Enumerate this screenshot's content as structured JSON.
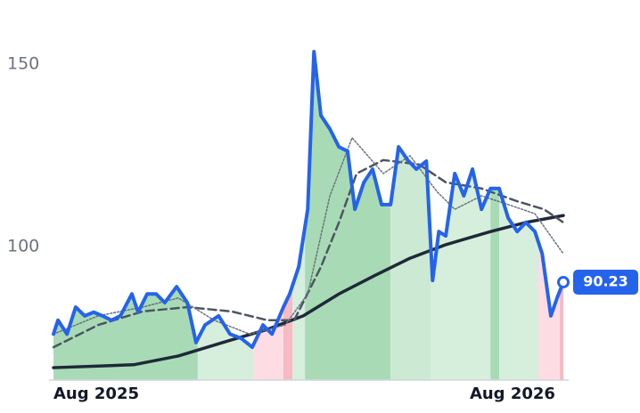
{
  "chart_data": {
    "type": "line",
    "xlim": [
      0,
      14.7
    ],
    "ylim": [
      63.4,
      160
    ],
    "xticks": [
      {
        "value": 0,
        "label": "Aug 2025"
      },
      {
        "value": 12,
        "label": "Aug 2026"
      }
    ],
    "yticks": [
      100,
      150
    ],
    "grid": false,
    "x": [
      0,
      0.13,
      0.39,
      0.64,
      0.9,
      1.16,
      1.41,
      1.67,
      1.93,
      2.26,
      2.44,
      2.7,
      2.96,
      3.21,
      3.55,
      3.86,
      4.11,
      4.37,
      4.76,
      5.09,
      5.4,
      5.73,
      6.04,
      6.3,
      6.63,
      6.81,
      7.07,
      7.33,
      7.51,
      7.71,
      7.97,
      8.23,
      8.48,
      8.69,
      8.95,
      9.2,
      9.46,
      9.72,
      9.95,
      10.21,
      10.46,
      10.75,
      10.93,
      11.11,
      11.31,
      11.57,
      11.83,
      12.08,
      12.34,
      12.6,
      12.85,
      13.11,
      13.37,
      13.62,
      13.88,
      14.09,
      14.34,
      14.52,
      14.7
    ],
    "series": [
      {
        "color": "#2563eb",
        "values": [
          76,
          79.8,
          76,
          83.4,
          81,
          82,
          81,
          79.8,
          81,
          87,
          82,
          87,
          87,
          84.6,
          89,
          84.6,
          73.7,
          78.5,
          81,
          76,
          74.9,
          72.4,
          78.5,
          76,
          83.4,
          87,
          94.4,
          110.2,
          153.4,
          135.9,
          132.2,
          127.3,
          126.1,
          110.2,
          117.6,
          121.2,
          111.5,
          111.5,
          127.3,
          123.7,
          121.2,
          123.4,
          90.7,
          104.1,
          102.9,
          120,
          113.9,
          121.2,
          110.2,
          115.9,
          115.9,
          107.8,
          104.1,
          106.6,
          104.1,
          98,
          81,
          85.9,
          90.23
        ]
      },
      {
        "color": "#1f2937",
        "x": [
          0,
          2.31,
          3.6,
          4.88,
          6.17,
          7.2,
          8.23,
          9.25,
          10.28,
          11.31,
          12.6,
          13.62,
          14.7
        ],
        "values": [
          66.8,
          67.6,
          70,
          73.7,
          77.3,
          81,
          87,
          92,
          96.8,
          100.5,
          104.1,
          106.6,
          108.5
        ]
      },
      {
        "color": "#4b5563",
        "x": [
          0,
          1.29,
          2.57,
          3.86,
          5.14,
          6.17,
          6.94,
          7.71,
          8.23,
          8.74,
          9.51,
          10.54,
          11.31,
          12.34,
          13.37,
          14.14,
          14.7
        ],
        "values": [
          72.4,
          78.5,
          82.2,
          83.4,
          82.2,
          79.8,
          79.8,
          94.4,
          106.6,
          120,
          123.7,
          122.5,
          117.6,
          115.9,
          112.4,
          110.2,
          106.6
        ]
      },
      {
        "color": "#6b7280",
        "x": [
          0,
          1.29,
          2.57,
          3.6,
          4.63,
          5.66,
          6.68,
          7.33,
          7.97,
          8.61,
          9.51,
          10.28,
          11.05,
          11.57,
          12.34,
          13.11,
          13.88,
          14.7
        ],
        "values": [
          76,
          81,
          83.4,
          85.9,
          79.8,
          76,
          78.5,
          87,
          113.9,
          129.8,
          120,
          124.9,
          115.1,
          110.2,
          113.9,
          111.5,
          109,
          98
        ]
      }
    ],
    "regions": [
      {
        "start": 0,
        "end": 4.16,
        "color": "#a8dbb5"
      },
      {
        "start": 4.16,
        "end": 5.78,
        "color": "#d6efdd"
      },
      {
        "start": 5.78,
        "end": 6.63,
        "color": "#fddde3"
      },
      {
        "start": 6.63,
        "end": 6.89,
        "color": "#f8b9c5"
      },
      {
        "start": 6.89,
        "end": 7.25,
        "color": "#d6efdd"
      },
      {
        "start": 7.25,
        "end": 9.72,
        "color": "#a8dbb5"
      },
      {
        "start": 9.72,
        "end": 10.88,
        "color": "#cbe9d3"
      },
      {
        "start": 10.88,
        "end": 12.6,
        "color": "#d6efdd"
      },
      {
        "start": 12.6,
        "end": 12.85,
        "color": "#a8dbb5"
      },
      {
        "start": 12.85,
        "end": 13.98,
        "color": "#d6efdd"
      },
      {
        "start": 13.98,
        "end": 14.6,
        "color": "#fddde3"
      },
      {
        "start": 14.6,
        "end": 14.7,
        "color": "#f8b9c5"
      }
    ]
  }
}
